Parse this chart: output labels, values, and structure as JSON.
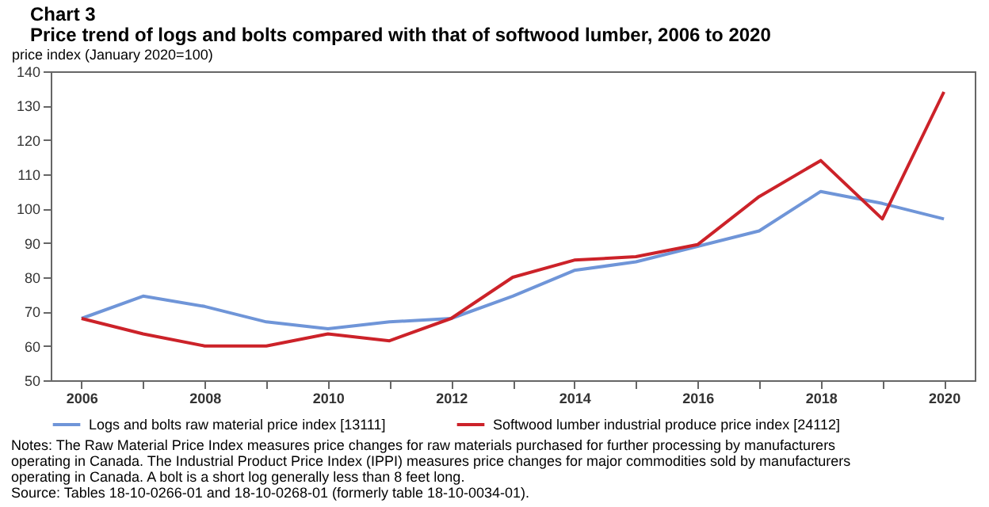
{
  "chart_data": {
    "type": "line",
    "title": "Chart 3",
    "subtitle": "Price trend of logs and bolts compared with that of softwood lumber, 2006 to 2020",
    "ylabel": "price index (January 2020=100)",
    "x": [
      2006,
      2007,
      2008,
      2009,
      2010,
      2011,
      2012,
      2013,
      2014,
      2015,
      2016,
      2017,
      2018,
      2019,
      2020
    ],
    "series": [
      {
        "name": "Logs and bolts raw material price index [13111]",
        "color": "#6f95d8",
        "values": [
          68,
          74.5,
          71.5,
          67,
          65,
          67,
          68,
          74.5,
          82,
          84.5,
          89,
          93.5,
          105,
          101.5,
          97
        ]
      },
      {
        "name": "Softwood lumber industrial produce price index [24112]",
        "color": "#cc2229",
        "values": [
          68,
          63.5,
          60,
          60,
          63.5,
          61.5,
          68,
          80,
          85,
          86,
          89.5,
          103.5,
          114,
          97,
          134
        ]
      }
    ],
    "xlim": [
      2005.5,
      2020.5
    ],
    "xticks": [
      2006,
      {
        "value": 2007,
        "label": null
      },
      2008,
      {
        "value": 2009,
        "label": null
      },
      2010,
      {
        "value": 2011,
        "label": null
      },
      2012,
      {
        "value": 2013,
        "label": null
      },
      2014,
      {
        "value": 2015,
        "label": null
      },
      2016,
      {
        "value": 2017,
        "label": null
      },
      2018,
      {
        "value": 2019,
        "label": null
      },
      2020
    ],
    "ylim": [
      50,
      140
    ],
    "yticks": [
      50,
      60,
      70,
      80,
      90,
      100,
      110,
      120,
      130,
      140
    ],
    "grid": false,
    "legend": "bottom",
    "marker": "none",
    "line_style": "solid",
    "annotations": [
      "Notes: The Raw Material Price Index measures price changes for raw materials purchased for further processing by manufacturers operating in Canada. The Industrial Product Price Index (IPPI) measures price changes for major commodities sold by manufacturers operating in Canada. A bolt is a short log generally less than 8 feet long.",
      "Source: Tables 18-10-0266-01 and 18-10-0268-01 (formerly table 18-10-0034-01)."
    ]
  }
}
